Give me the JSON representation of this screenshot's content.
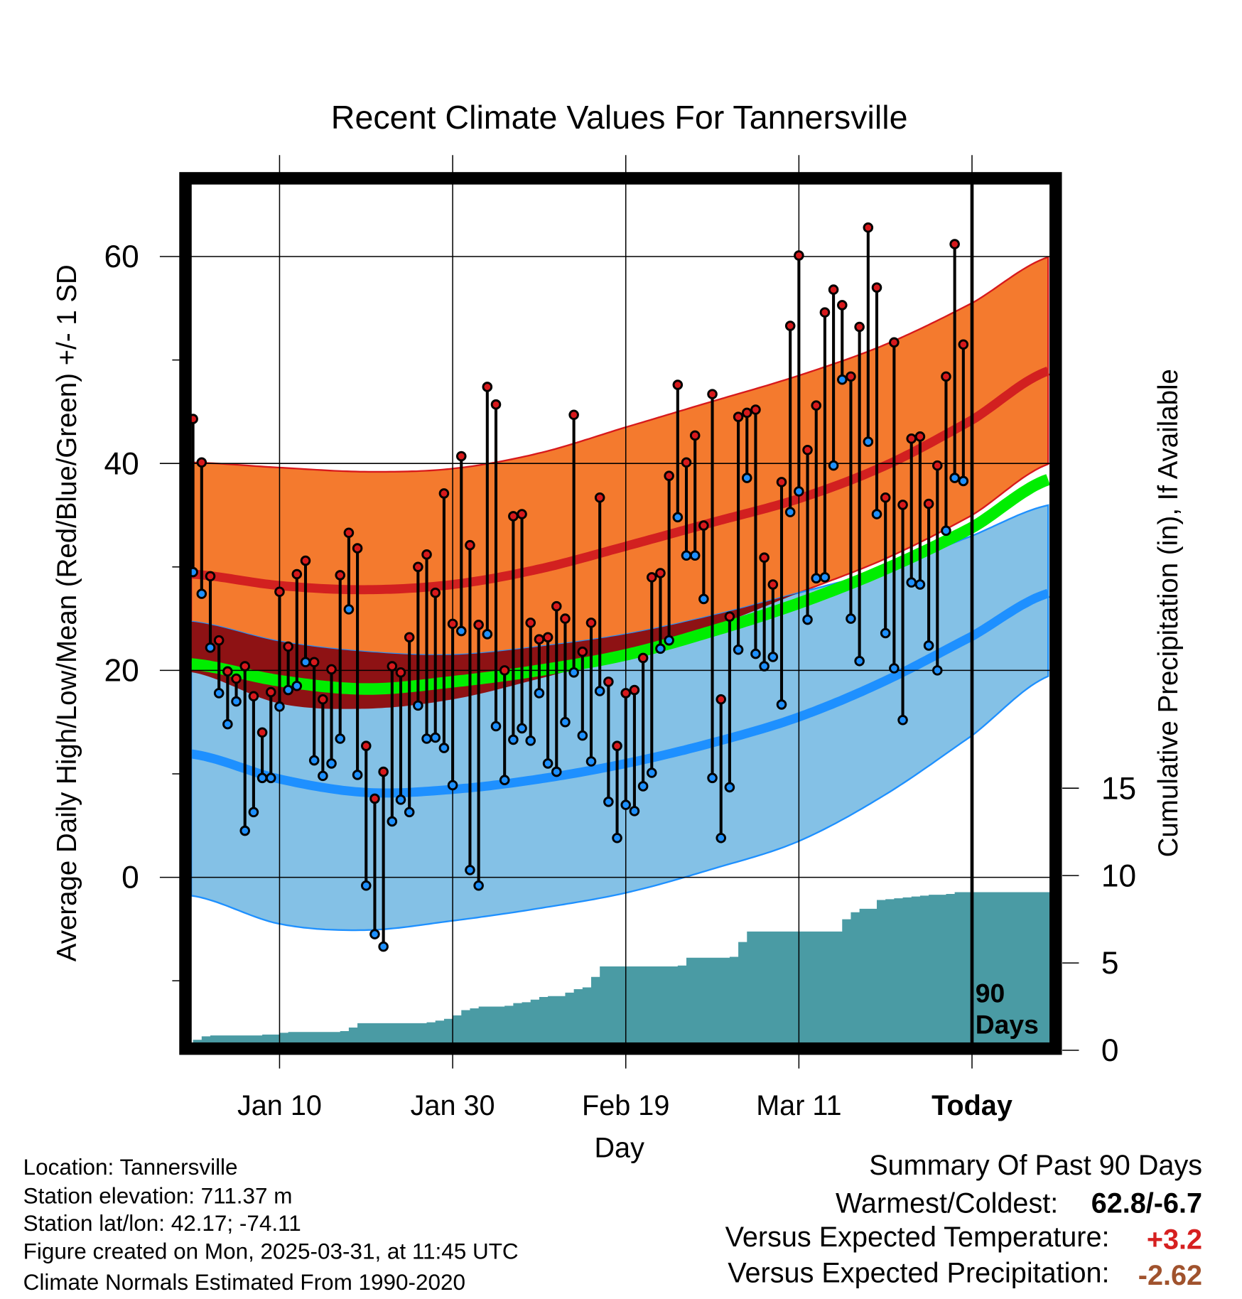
{
  "chart_data": {
    "type": "line",
    "title": "Recent Climate Values For Tannersville",
    "xlabel": "Day",
    "ylabel": "Average Daily High/Low/Mean (Red/Blue/Green) +/- 1 SD",
    "ylabel_right": "Cumulative Precipitation (in), If Available",
    "x_tick_labels": [
      {
        "day": 10,
        "label": "Jan 10"
      },
      {
        "day": 30,
        "label": "Jan 30"
      },
      {
        "day": 50,
        "label": "Feb 19"
      },
      {
        "day": 70,
        "label": "Mar 11"
      },
      {
        "day": 90,
        "label": "Today"
      }
    ],
    "x_day_zero": "Dec 31",
    "xlim": [
      -0.2,
      99
    ],
    "ylim": [
      -16,
      67
    ],
    "y_ticks": [
      0,
      20,
      40,
      60
    ],
    "y_minor_ticks": [
      -10,
      10,
      30,
      50
    ],
    "y2lim": [
      0,
      20
    ],
    "y2_ticks": [
      0,
      5,
      10,
      15
    ],
    "grid": true,
    "today_marker_label": "90\nDays",
    "today_marker_label_lines": [
      "90",
      "Days"
    ],
    "colors": {
      "high": "#d7191c",
      "high_band": "#f47a2e",
      "overlap": "#8e1214",
      "low": "#1e90ff",
      "low_band": "#84c1e6",
      "mean": "#00ee00",
      "precip": "#4a9ba4",
      "high_line": "#d22020"
    },
    "normals": {
      "days": [
        0,
        10,
        20,
        30,
        40,
        50,
        60,
        70,
        80,
        90,
        99
      ],
      "high_plus_sd": [
        40.1,
        39.6,
        39.2,
        39.5,
        41.0,
        43.5,
        46.0,
        48.5,
        51.5,
        55.5,
        60.0
      ],
      "high_mean": [
        29.3,
        28.2,
        27.8,
        28.3,
        29.8,
        32.0,
        34.3,
        36.6,
        39.8,
        44.2,
        49.0
      ],
      "high_minus_sd": [
        19.8,
        16.8,
        16.3,
        17.2,
        19.2,
        21.5,
        24.2,
        27.5,
        30.8,
        35.0,
        40.0
      ],
      "low_plus_sd": [
        24.7,
        22.8,
        21.8,
        21.5,
        22.3,
        23.5,
        25.3,
        27.5,
        29.8,
        33.0,
        36.0
      ],
      "low_mean": [
        11.9,
        9.5,
        8.2,
        8.5,
        9.5,
        11.0,
        13.0,
        15.5,
        19.0,
        23.3,
        27.5
      ],
      "low_minus_sd": [
        -1.8,
        -4.5,
        -5.1,
        -4.2,
        -3.0,
        -1.5,
        0.8,
        3.5,
        8.0,
        13.7,
        19.5
      ],
      "mean": [
        20.6,
        19.0,
        18.2,
        18.9,
        20.0,
        21.5,
        23.8,
        26.5,
        29.8,
        33.8,
        38.5
      ]
    },
    "daily_high": [
      44.3,
      40.1,
      29.1,
      22.9,
      19.9,
      19.2,
      20.4,
      17.5,
      14.0,
      17.9,
      27.6,
      22.3,
      29.3,
      30.6,
      20.8,
      17.2,
      20.1,
      29.2,
      33.3,
      31.8,
      12.7,
      7.6,
      10.2,
      20.4,
      19.8,
      23.2,
      30.0,
      31.2,
      27.5,
      37.1,
      24.5,
      40.7,
      32.1,
      24.4,
      47.4,
      45.7,
      20.0,
      34.9,
      35.1,
      24.6,
      23.0,
      23.2,
      26.2,
      25.0,
      44.7,
      21.8,
      24.6,
      36.7,
      18.9,
      12.7,
      17.8,
      18.1,
      21.2,
      29.0,
      29.4,
      38.8,
      47.6,
      40.1,
      42.7,
      34.0,
      46.7,
      17.2,
      25.2,
      44.5,
      44.9,
      45.2,
      30.9,
      28.3,
      38.2,
      53.3,
      60.1,
      41.3,
      45.6,
      54.6,
      56.8,
      55.3,
      48.4,
      53.2,
      62.8,
      57.0,
      36.7,
      51.7,
      36.0,
      42.4,
      42.6,
      36.1,
      39.8,
      48.4,
      61.2,
      51.5
    ],
    "daily_low": [
      29.5,
      27.4,
      22.2,
      17.8,
      14.8,
      17.0,
      4.5,
      6.3,
      9.6,
      9.6,
      16.5,
      18.1,
      18.5,
      20.8,
      11.3,
      9.8,
      11.0,
      13.4,
      25.9,
      9.9,
      -0.8,
      -5.5,
      -6.7,
      5.4,
      7.5,
      6.3,
      16.6,
      13.4,
      13.5,
      12.5,
      8.9,
      23.8,
      0.7,
      -0.8,
      23.5,
      14.6,
      9.4,
      13.3,
      14.4,
      13.2,
      17.8,
      11.0,
      10.2,
      15.0,
      19.8,
      13.7,
      11.2,
      18.0,
      7.3,
      3.8,
      7.0,
      6.4,
      8.8,
      10.1,
      22.1,
      22.9,
      34.8,
      31.1,
      31.1,
      26.9,
      9.6,
      3.8,
      8.7,
      22.0,
      38.6,
      21.6,
      20.4,
      21.3,
      16.7,
      35.3,
      37.3,
      24.9,
      28.9,
      29.0,
      39.8,
      48.1,
      25.0,
      20.9,
      42.1,
      35.1,
      23.6,
      20.2,
      15.2,
      28.5,
      28.3,
      22.4,
      20.0,
      33.5,
      38.6,
      38.3
    ],
    "cumulative_precip": [
      0.6,
      0.8,
      0.85,
      0.85,
      0.85,
      0.85,
      0.85,
      0.85,
      0.9,
      0.9,
      1.0,
      1.05,
      1.05,
      1.05,
      1.05,
      1.05,
      1.05,
      1.1,
      1.3,
      1.55,
      1.55,
      1.55,
      1.55,
      1.55,
      1.55,
      1.55,
      1.55,
      1.6,
      1.7,
      1.8,
      2.0,
      2.3,
      2.4,
      2.5,
      2.5,
      2.5,
      2.55,
      2.7,
      2.75,
      2.9,
      3.05,
      3.1,
      3.1,
      3.3,
      3.5,
      3.6,
      4.2,
      4.8,
      4.8,
      4.8,
      4.8,
      4.8,
      4.8,
      4.8,
      4.8,
      4.8,
      4.85,
      5.3,
      5.3,
      5.3,
      5.3,
      5.3,
      5.35,
      6.2,
      6.8,
      6.8,
      6.8,
      6.8,
      6.8,
      6.8,
      6.8,
      6.8,
      6.8,
      6.8,
      6.8,
      7.5,
      7.9,
      8.1,
      8.1,
      8.6,
      8.65,
      8.7,
      8.75,
      8.8,
      8.85,
      8.9,
      8.9,
      8.95,
      9.05,
      9.05
    ]
  },
  "footer": {
    "location": "Location: Tannersville",
    "elevation": "Station elevation: 711.37 m",
    "latlon": "Station lat/lon: 42.17; -74.11",
    "created": "Figure created on Mon, 2025-03-31, at 11:45 UTC",
    "normals": "Climate Normals Estimated From 1990-2020"
  },
  "summary": {
    "title": "Summary Of Past 90 Days",
    "warmest_coldest_label": "Warmest/Coldest:",
    "warmest_coldest_value": "62.8/-6.7",
    "temp_label": "Versus Expected Temperature:",
    "temp_value": "+3.2",
    "temp_color": "#d62020",
    "precip_label": "Versus Expected Precipitation:",
    "precip_value": "-2.62",
    "precip_color": "#a0522d"
  }
}
